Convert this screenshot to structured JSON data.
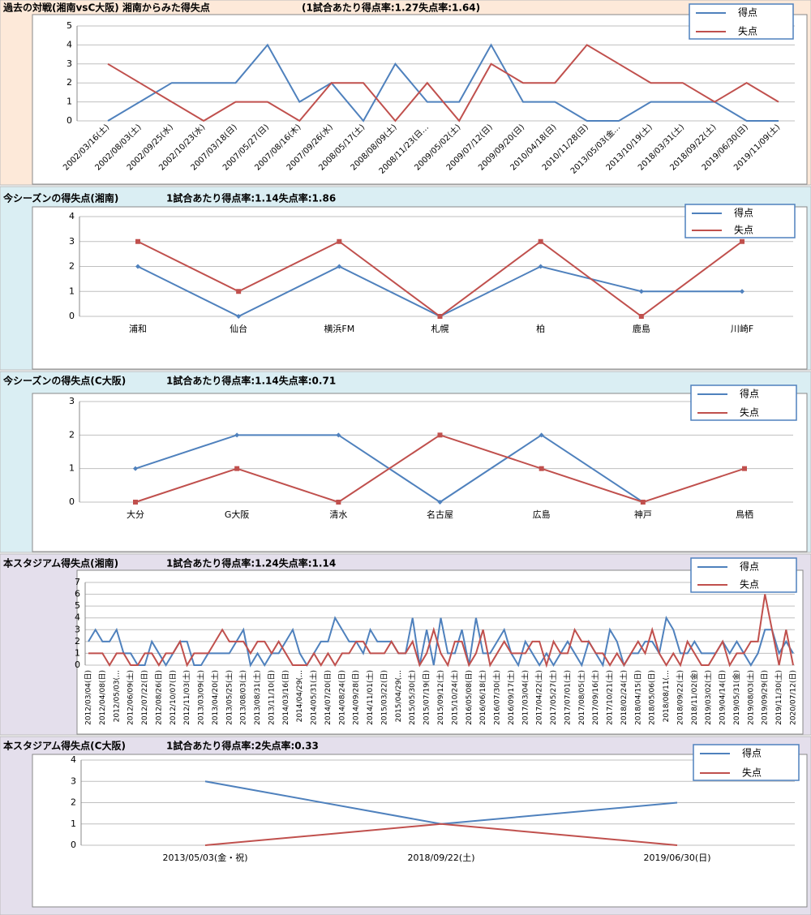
{
  "chart_data": [
    {
      "type": "line",
      "title": "過去の対戦(湘南vsC大阪) 湘南からみた得失点",
      "subtitle": "(1試合あたり得点率:1.27失点率:1.64)",
      "categories": [
        "2002/03/16(土)",
        "2002/08/03(土)",
        "2002/09/25(水)",
        "2002/10/23(水)",
        "2007/03/18(日)",
        "2007/05/27(日)",
        "2007/08/16(木)",
        "2007/09/26(水)",
        "2008/05/17(土)",
        "2008/08/09(土)",
        "2008/11/23(日…",
        "2009/05/02(土)",
        "2009/07/12(日)",
        "2009/09/20(日)",
        "2010/04/18(日)",
        "2010/11/28(日)",
        "2013/05/03(金…",
        "2013/10/19(土)",
        "2018/03/31(土)",
        "2018/09/22(土)",
        "2019/06/30(日)",
        "2019/11/09(土)"
      ],
      "series": [
        {
          "name": "得点",
          "color": "#4f81bd",
          "values": [
            0,
            1,
            2,
            2,
            2,
            4,
            1,
            2,
            0,
            3,
            1,
            1,
            4,
            1,
            1,
            0,
            0,
            1,
            1,
            1,
            0,
            0
          ]
        },
        {
          "name": "失点",
          "color": "#c0504d",
          "values": [
            3,
            2,
            1,
            0,
            1,
            1,
            0,
            2,
            2,
            0,
            2,
            0,
            3,
            2,
            2,
            4,
            3,
            2,
            2,
            1,
            2,
            1
          ]
        }
      ],
      "ylim": [
        0,
        5
      ],
      "yticks": [
        0,
        1,
        2,
        3,
        4,
        5
      ],
      "grid": true,
      "legend": "top-right"
    },
    {
      "type": "line",
      "title": "今シーズンの得失点(湘南)",
      "subtitle": "1試合あたり得点率:1.14失点率:1.86",
      "categories": [
        "浦和",
        "仙台",
        "横浜FM",
        "札幌",
        "柏",
        "鹿島",
        "川崎F"
      ],
      "series": [
        {
          "name": "得点",
          "color": "#4f81bd",
          "marker": "diamond",
          "values": [
            2,
            0,
            2,
            0,
            2,
            1,
            1
          ]
        },
        {
          "name": "失点",
          "color": "#c0504d",
          "marker": "square",
          "values": [
            3,
            1,
            3,
            0,
            3,
            0,
            3
          ]
        }
      ],
      "ylim": [
        0,
        4
      ],
      "yticks": [
        0,
        1,
        2,
        3,
        4
      ],
      "grid": true,
      "legend": "top-right"
    },
    {
      "type": "line",
      "title": "今シーズンの得失点(C大阪)",
      "subtitle": "1試合あたり得点率:1.14失点率:0.71",
      "categories": [
        "大分",
        "G大阪",
        "清水",
        "名古屋",
        "広島",
        "神戸",
        "鳥栖"
      ],
      "series": [
        {
          "name": "得点",
          "color": "#4f81bd",
          "marker": "diamond",
          "values": [
            1,
            2,
            2,
            0,
            2,
            0,
            null
          ]
        },
        {
          "name": "失点",
          "color": "#c0504d",
          "marker": "square",
          "values": [
            0,
            1,
            0,
            2,
            1,
            0,
            1
          ]
        }
      ],
      "ylim": [
        0,
        3
      ],
      "yticks": [
        0,
        1,
        2,
        3
      ],
      "grid": true,
      "legend": "top-right"
    },
    {
      "type": "line",
      "title": "本スタジアム得失点(湘南)",
      "subtitle": "1試合あたり得点率:1.24失点率:1.14",
      "categories": [
        "2012/03/04(日)",
        null,
        "2012/04/08(日)",
        null,
        "2012/05/03(…",
        null,
        "2012/06/09(土)",
        null,
        "2012/07/22(日)",
        null,
        "2012/08/26(日)",
        null,
        "2012/10/07(日)",
        null,
        "2012/11/03(土)",
        null,
        "2013/03/09(土)",
        null,
        "2013/04/20(土)",
        null,
        "2013/05/25(土)",
        null,
        "2013/08/03(土)",
        null,
        "2013/08/31(土)",
        null,
        "2013/11/10(日)",
        null,
        "2014/03/16(日)",
        null,
        "2014/04/29(…",
        null,
        "2014/05/31(土)",
        null,
        "2014/07/20(日)",
        null,
        "2014/08/24(日)",
        null,
        "2014/09/28(日)",
        null,
        "2014/11/01(土)",
        null,
        "2015/03/22(日)",
        null,
        "2015/04/29(…",
        null,
        "2015/05/30(土)",
        null,
        "2015/07/19(日)",
        null,
        "2015/09/12(土)",
        null,
        "2015/10/24(土)",
        null,
        "2016/05/08(日)",
        null,
        "2016/06/18(土)",
        null,
        "2016/07/30(土)",
        null,
        "2016/09/17(土)",
        null,
        "2017/03/04(土)",
        null,
        "2017/04/22(土)",
        null,
        "2017/05/27(土)",
        null,
        "2017/07/01(土)",
        null,
        "2017/08/05(土)",
        null,
        "2017/09/16(土)",
        null,
        "2017/10/21(土)",
        null,
        "2018/02/24(土)",
        null,
        "2018/04/15(日)",
        null,
        "2018/05/06(日)",
        null,
        "2018/08/11(…",
        null,
        "2018/09/22(土)",
        null,
        "2018/11/02(金)",
        null,
        "2019/03/02(土)",
        null,
        "2019/04/14(日)",
        null,
        "2019/05/31(金)",
        null,
        "2019/08/03(土)",
        null,
        "2019/09/29(日)",
        null,
        "2019/11/30(土)",
        null,
        "2020/07/12(日)"
      ],
      "series": [
        {
          "name": "得点",
          "color": "#4f81bd",
          "values": [
            2,
            3,
            2,
            2,
            3,
            1,
            1,
            0,
            0,
            2,
            1,
            0,
            1,
            2,
            2,
            0,
            0,
            1,
            1,
            1,
            1,
            2,
            3,
            0,
            1,
            0,
            1,
            1,
            2,
            3,
            1,
            0,
            1,
            2,
            2,
            4,
            3,
            2,
            2,
            1,
            3,
            2,
            2,
            2,
            1,
            1,
            4,
            0,
            3,
            0,
            4,
            1,
            1,
            3,
            0,
            4,
            1,
            1,
            2,
            3,
            1,
            0,
            2,
            1,
            0,
            1,
            0,
            1,
            2,
            1,
            0,
            2,
            1,
            0,
            3,
            2,
            0,
            1,
            1,
            2,
            2,
            1,
            4,
            3,
            1,
            1,
            2,
            1,
            1,
            1,
            2,
            1,
            2,
            1,
            0,
            1,
            3,
            3,
            1,
            2,
            1
          ]
        },
        {
          "name": "失点",
          "color": "#c0504d",
          "values": [
            1,
            1,
            1,
            0,
            1,
            1,
            0,
            0,
            1,
            1,
            0,
            1,
            1,
            2,
            0,
            1,
            1,
            1,
            2,
            3,
            2,
            2,
            2,
            1,
            2,
            2,
            1,
            2,
            1,
            0,
            0,
            0,
            1,
            0,
            1,
            0,
            1,
            1,
            2,
            2,
            1,
            1,
            1,
            2,
            1,
            1,
            2,
            0,
            1,
            3,
            1,
            0,
            2,
            2,
            0,
            1,
            3,
            0,
            1,
            2,
            1,
            1,
            1,
            2,
            2,
            0,
            2,
            1,
            1,
            3,
            2,
            2,
            1,
            1,
            0,
            1,
            0,
            1,
            2,
            1,
            3,
            1,
            0,
            1,
            0,
            2,
            1,
            0,
            0,
            1,
            2,
            0,
            1,
            1,
            2,
            2,
            6,
            3,
            0,
            3,
            0
          ]
        }
      ],
      "ylim": [
        0,
        7
      ],
      "yticks": [
        0,
        1,
        2,
        3,
        4,
        5,
        6,
        7
      ],
      "grid": true,
      "legend": "top-right"
    },
    {
      "type": "line",
      "title": "本スタジアム得失点(C大阪)",
      "subtitle": "1試合あたり得点率:2失点率:0.33",
      "categories": [
        "2013/05/03(金・祝)",
        "2018/09/22(土)",
        "2019/06/30(日)"
      ],
      "series": [
        {
          "name": "得点",
          "color": "#4f81bd",
          "values": [
            3,
            1,
            2
          ]
        },
        {
          "name": "失点",
          "color": "#c0504d",
          "values": [
            0,
            1,
            0
          ]
        }
      ],
      "ylim": [
        0,
        4
      ],
      "yticks": [
        0,
        1,
        2,
        3,
        4
      ],
      "grid": true,
      "legend": "top-right"
    }
  ]
}
